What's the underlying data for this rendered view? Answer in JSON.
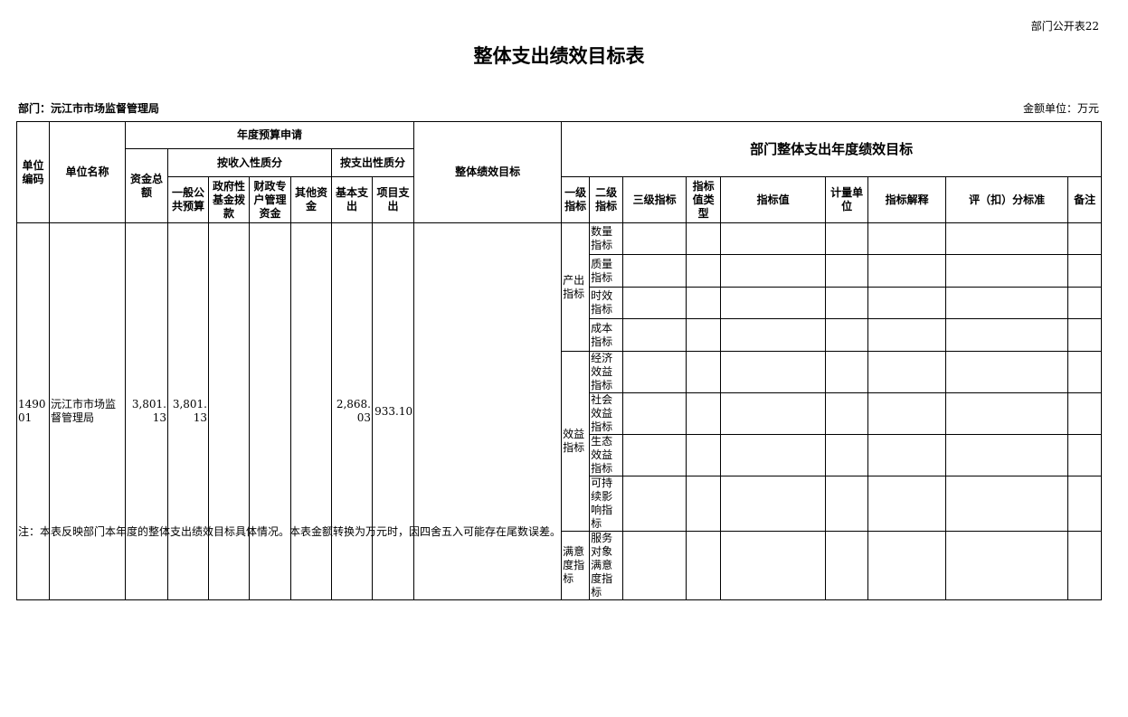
{
  "page_number": "部门公开表22",
  "title": "整体支出绩效目标表",
  "department": "部门：沅江市市场监督管理局",
  "amount_unit": "金额单位：万元",
  "headers": {
    "unit_code": "单位编码",
    "unit_name": "单位名称",
    "annual_budget": "年度预算申请",
    "performance_goal": "整体绩效目标",
    "dept_goal": "部门整体支出年度绩效目标",
    "total": "资金总额",
    "by_income": "按收入性质分",
    "by_expense": "按支出性质分",
    "general": "一般公共预算",
    "gov_fund": "政府性基金拨款",
    "special": "财政专户管理资金",
    "other": "其他资金",
    "basic": "基本支出",
    "project": "项目支出",
    "level1": "一级指标",
    "level2": "二级指标",
    "level3": "三级指标",
    "value_type": "指标值类型",
    "value": "指标值",
    "measure_unit": "计量单位",
    "explain": "指标解释",
    "scoring": "评（扣）分标准",
    "remark": "备注"
  },
  "row": {
    "code": "149001",
    "name": "沅江市市场监督管理局",
    "total": "3,801.13",
    "general": "3,801.13",
    "gov_fund": "",
    "special": "",
    "other": "",
    "basic": "2,868.03",
    "project": "933.10",
    "goal": ""
  },
  "indicators": [
    {
      "level1": "产出指标",
      "items": [
        "数量指标",
        "质量指标",
        "时效指标",
        "成本指标"
      ]
    },
    {
      "level1": "效益指标",
      "items": [
        "经济效益指标",
        "社会效益指标",
        "生态效益指标",
        "可持续影响指标"
      ]
    },
    {
      "level1": "满意度指标",
      "items": [
        "服务对象满意度指标"
      ]
    }
  ],
  "note": "注：本表反映部门本年度的整体支出绩效目标具体情况。本表金额转换为万元时，因四舍五入可能存在尾数误差。"
}
